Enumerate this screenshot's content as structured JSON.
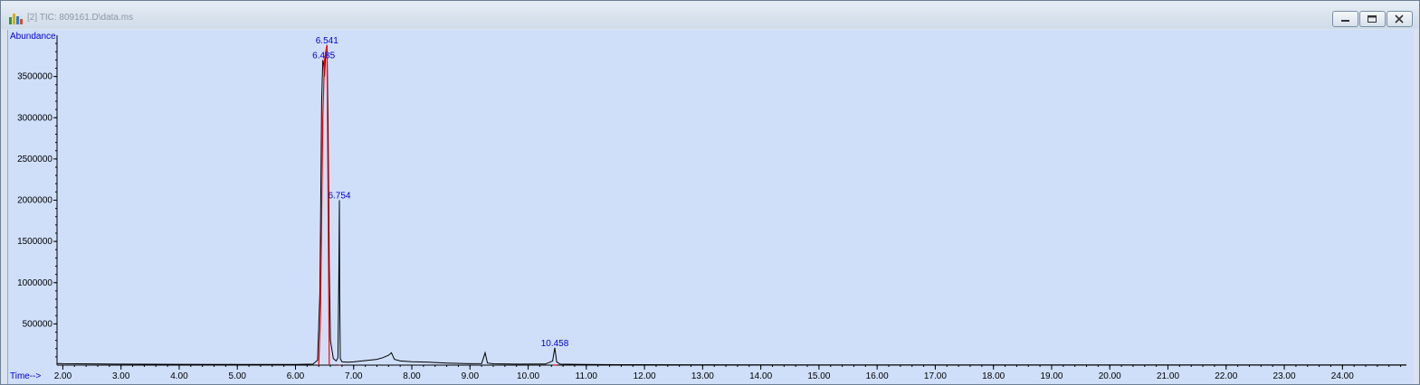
{
  "window": {
    "title": "[2] TIC: 809161.D\\data.ms",
    "icons": [
      "app-chromatogram-icon",
      "minimize-icon",
      "restore-icon",
      "close-icon"
    ]
  },
  "colors": {
    "plot_background": "#cfdffa",
    "trace": "#000000",
    "baseline_integration": "#ff0000",
    "peak_label": "#0000cc",
    "axis_label": "#0000cc"
  },
  "chart_data": {
    "type": "line",
    "ylabel": "Abundance",
    "xlabel": "Time-->",
    "xlim": [
      1.9,
      25.1
    ],
    "ylim": [
      0,
      4000000
    ],
    "x_ticks": [
      "2.00",
      "3.00",
      "4.00",
      "5.00",
      "6.00",
      "7.00",
      "8.00",
      "9.00",
      "10.00",
      "11.00",
      "12.00",
      "13.00",
      "14.00",
      "15.00",
      "16.00",
      "17.00",
      "18.00",
      "19.00",
      "20.00",
      "21.00",
      "22.00",
      "23.00",
      "24.00"
    ],
    "y_ticks": [
      {
        "value": 500000,
        "label": "500000"
      },
      {
        "value": 1000000,
        "label": "1000000"
      },
      {
        "value": 1500000,
        "label": "1500000"
      },
      {
        "value": 2000000,
        "label": "2000000"
      },
      {
        "value": 2500000,
        "label": "2500000"
      },
      {
        "value": 3000000,
        "label": "3000000"
      },
      {
        "value": 3500000,
        "label": "3500000"
      }
    ],
    "series": [
      {
        "x": [
          1.9,
          2.0,
          2.5,
          3.0,
          4.0,
          5.0,
          6.0,
          6.3,
          6.38,
          6.42,
          6.45,
          6.47,
          6.485,
          6.5,
          6.52,
          6.541,
          6.56,
          6.58,
          6.6,
          6.65,
          6.7,
          6.73,
          6.745,
          6.754,
          6.76,
          6.77,
          6.8,
          6.9,
          7.0,
          7.2,
          7.4,
          7.5,
          7.6,
          7.65,
          7.7,
          7.8,
          8.0,
          8.3,
          8.6,
          9.0,
          9.2,
          9.26,
          9.3,
          9.4,
          9.8,
          10.3,
          10.42,
          10.458,
          10.49,
          10.55,
          11.0,
          11.5,
          12.0,
          13.0,
          15.0,
          18.0,
          21.0,
          24.0,
          25.1
        ],
        "y": [
          20000,
          18000,
          15000,
          12000,
          10000,
          9000,
          9000,
          12000,
          60000,
          900000,
          3200000,
          3700000,
          3650000,
          3500000,
          3800000,
          3880000,
          3000000,
          1200000,
          300000,
          80000,
          50000,
          90000,
          1100000,
          2000000,
          900000,
          80000,
          40000,
          35000,
          40000,
          55000,
          70000,
          90000,
          120000,
          150000,
          70000,
          50000,
          42000,
          35000,
          25000,
          18000,
          20000,
          150000,
          25000,
          16000,
          12000,
          13000,
          50000,
          210000,
          40000,
          12000,
          8000,
          6000,
          5000,
          4000,
          3000,
          3000,
          2000,
          2000,
          2000
        ]
      }
    ],
    "peak_labels": [
      {
        "x": 6.541,
        "y": 3880000,
        "label": "6.541"
      },
      {
        "x": 6.485,
        "y": 3700000,
        "label": "6.485"
      },
      {
        "x": 6.754,
        "y": 2000000,
        "label": "6.754"
      },
      {
        "x": 10.458,
        "y": 210000,
        "label": "10.458"
      }
    ],
    "integration_baselines": [
      {
        "x": [
          6.4,
          6.43,
          6.47,
          6.5,
          6.52,
          6.541,
          6.58
        ],
        "y": [
          0,
          600000,
          3000000,
          3700000,
          3800000,
          3880000,
          0
        ]
      },
      {
        "x": [
          6.74,
          6.754,
          6.77
        ],
        "y": [
          0,
          0,
          0
        ]
      },
      {
        "x": [
          10.43,
          10.458,
          10.49
        ],
        "y": [
          0,
          0,
          0
        ]
      }
    ]
  }
}
